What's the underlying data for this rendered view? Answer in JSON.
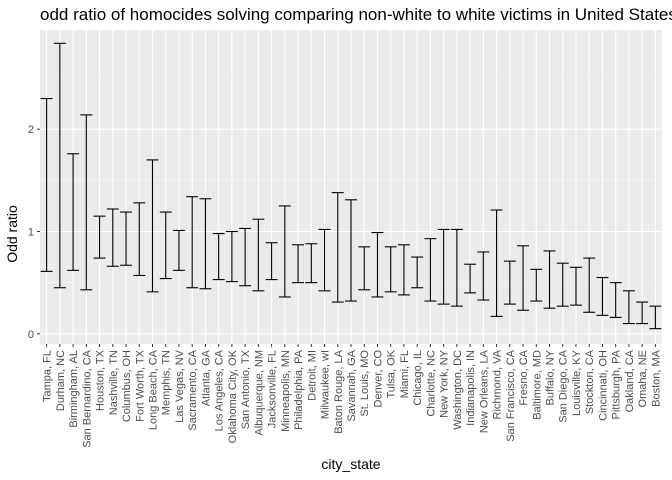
{
  "chart_data": {
    "type": "errorbar",
    "title": "odd ratio of homocides solving comparing non-white to white victims in United States",
    "xlabel": "city_state",
    "ylabel": "Odd ratio",
    "ylim": [
      -0.1,
      2.97
    ],
    "yticks": [
      0,
      1,
      2
    ],
    "grid": true,
    "colors": {
      "panel": "#ebebeb",
      "grid_major": "#ffffff",
      "grid_minor": "#f5f5f5",
      "bar": "#000000"
    },
    "categories": [
      "Tampa, FL",
      "Durham, NC",
      "Birmingham, AL",
      "San Bernardino, CA",
      "Houston, TX",
      "Nashville, TN",
      "Columbus, OH",
      "Fort Worth, TX",
      "Long Beach, CA",
      "Memphis, TN",
      "Las Vegas, NV",
      "Sacramento, CA",
      "Atlanta, GA",
      "Los Angeles, CA",
      "Oklahoma City, OK",
      "San Antonio, TX",
      "Albuquerque, NM",
      "Jacksonville, FL",
      "Minneapolis, MN",
      "Philadelphia, PA",
      "Detroit, MI",
      "Milwaukee, wI",
      "Baton Rouge, LA",
      "Savannah, GA",
      "St. Louis, MO",
      "Denver, CO",
      "Tulsa, OK",
      "Miami, FL",
      "Chicago, IL",
      "Charlotte, NC",
      "New York, NY",
      "Washington, DC",
      "Indianapolis, IN",
      "New Orleans, LA",
      "Richmond, VA",
      "San Francisco, CA",
      "Fresno, CA",
      "Baltimore, MD",
      "Buffalo, NY",
      "San Diego, CA",
      "Louisville, KY",
      "Stockton, CA",
      "Cincinnati, OH",
      "Pittsburgh, PA",
      "Oakland, CA",
      "Omaha, NE",
      "Boston, MA"
    ],
    "lower": [
      0.61,
      0.45,
      0.62,
      0.43,
      0.74,
      0.66,
      0.67,
      0.57,
      0.41,
      0.54,
      0.62,
      0.45,
      0.44,
      0.53,
      0.51,
      0.47,
      0.42,
      0.53,
      0.36,
      0.5,
      0.5,
      0.42,
      0.31,
      0.32,
      0.43,
      0.36,
      0.41,
      0.38,
      0.45,
      0.32,
      0.29,
      0.27,
      0.4,
      0.33,
      0.17,
      0.29,
      0.23,
      0.32,
      0.25,
      0.27,
      0.28,
      0.21,
      0.18,
      0.16,
      0.1,
      0.1,
      0.05
    ],
    "upper": [
      2.3,
      2.84,
      1.76,
      2.14,
      1.15,
      1.22,
      1.19,
      1.28,
      1.7,
      1.19,
      1.01,
      1.34,
      1.32,
      0.98,
      1.0,
      1.03,
      1.12,
      0.89,
      1.25,
      0.87,
      0.88,
      1.02,
      1.38,
      1.31,
      0.85,
      0.99,
      0.85,
      0.87,
      0.75,
      0.93,
      1.02,
      1.02,
      0.68,
      0.8,
      1.21,
      0.71,
      0.86,
      0.63,
      0.81,
      0.69,
      0.65,
      0.74,
      0.55,
      0.5,
      0.42,
      0.31,
      0.27
    ]
  }
}
